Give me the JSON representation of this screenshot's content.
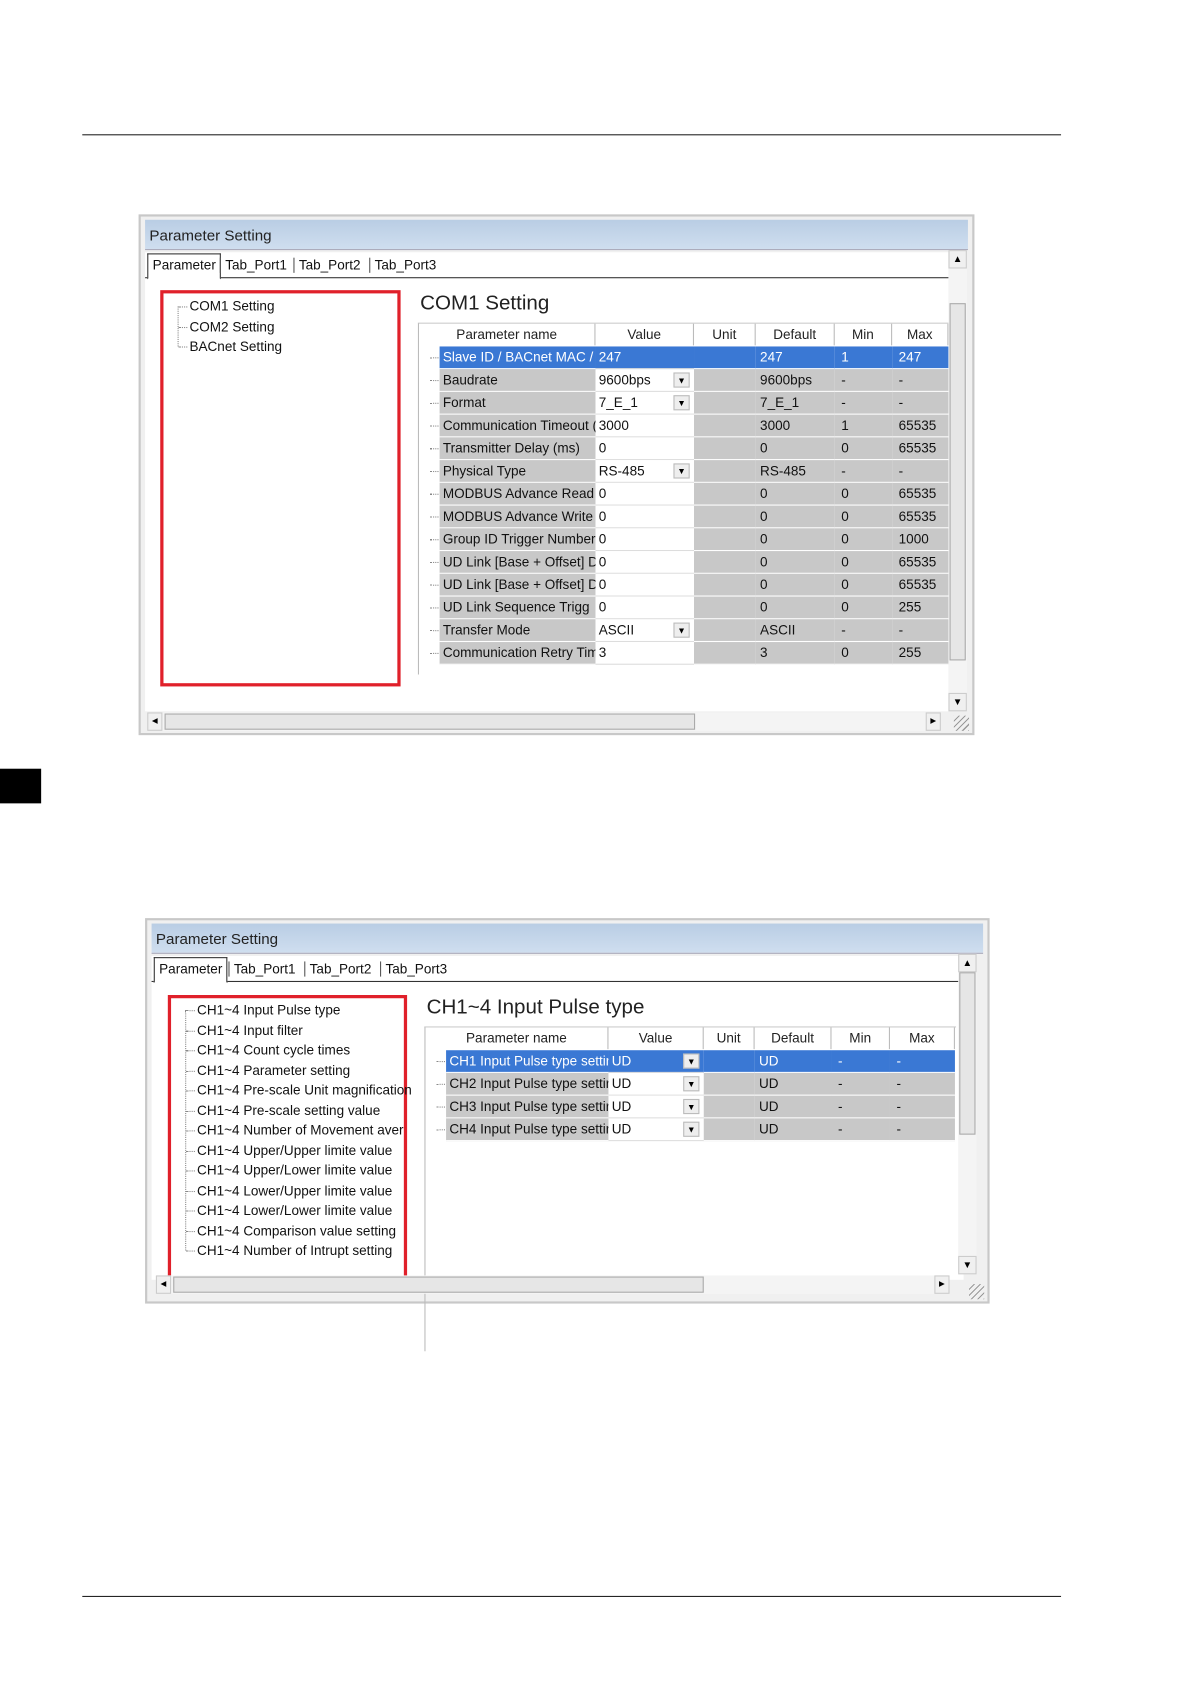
{
  "windows": [
    {
      "title": "Parameter Setting",
      "tabs": [
        "Parameter",
        "Tab_Port1",
        "Tab_Port2",
        "Tab_Port3"
      ],
      "active_tab": "Parameter",
      "tree": [
        "COM1 Setting",
        "COM2 Setting",
        "BACnet Setting"
      ],
      "heading": "COM1 Setting",
      "columns": [
        "Parameter name",
        "Value",
        "Unit",
        "Default",
        "Min",
        "Max"
      ],
      "rows": [
        {
          "name": "Slave ID / BACnet MAC /",
          "value": "247",
          "dropdown": false,
          "unit": "",
          "default": "247",
          "min": "1",
          "max": "247",
          "selected": true
        },
        {
          "name": "Baudrate",
          "value": "9600bps",
          "dropdown": true,
          "unit": "",
          "default": "9600bps",
          "min": "-",
          "max": "-"
        },
        {
          "name": "Format",
          "value": "7_E_1",
          "dropdown": true,
          "unit": "",
          "default": "7_E_1",
          "min": "-",
          "max": "-"
        },
        {
          "name": "Communication Timeout (",
          "value": "3000",
          "dropdown": false,
          "unit": "",
          "default": "3000",
          "min": "1",
          "max": "65535"
        },
        {
          "name": "Transmitter Delay (ms)",
          "value": "0",
          "dropdown": false,
          "unit": "",
          "default": "0",
          "min": "0",
          "max": "65535"
        },
        {
          "name": "Physical Type",
          "value": "RS-485",
          "dropdown": true,
          "unit": "",
          "default": "RS-485",
          "min": "-",
          "max": "-"
        },
        {
          "name": "MODBUS Advance Read",
          "value": "0",
          "dropdown": false,
          "unit": "",
          "default": "0",
          "min": "0",
          "max": "65535"
        },
        {
          "name": "MODBUS Advance Write",
          "value": "0",
          "dropdown": false,
          "unit": "",
          "default": "0",
          "min": "0",
          "max": "65535"
        },
        {
          "name": "Group ID Trigger Number",
          "value": "0",
          "dropdown": false,
          "unit": "",
          "default": "0",
          "min": "0",
          "max": "1000"
        },
        {
          "name": "UD Link [Base + Offset] D",
          "value": "0",
          "dropdown": false,
          "unit": "",
          "default": "0",
          "min": "0",
          "max": "65535"
        },
        {
          "name": "UD Link [Base + Offset] D",
          "value": "0",
          "dropdown": false,
          "unit": "",
          "default": "0",
          "min": "0",
          "max": "65535"
        },
        {
          "name": "UD Link Sequence Trigg",
          "value": "0",
          "dropdown": false,
          "unit": "",
          "default": "0",
          "min": "0",
          "max": "255"
        },
        {
          "name": "Transfer Mode",
          "value": "ASCII",
          "dropdown": true,
          "unit": "",
          "default": "ASCII",
          "min": "-",
          "max": "-"
        },
        {
          "name": "Communication Retry Tim",
          "value": "3",
          "dropdown": false,
          "unit": "",
          "default": "3",
          "min": "0",
          "max": "255"
        }
      ]
    },
    {
      "title": "Parameter Setting",
      "tabs": [
        "Parameter",
        "Tab_Port1",
        "Tab_Port2",
        "Tab_Port3"
      ],
      "active_tab": "Parameter",
      "tree": [
        "CH1~4 Input Pulse type",
        "CH1~4 Input filter",
        "CH1~4 Count cycle times",
        "CH1~4 Parameter setting",
        "CH1~4 Pre-scale Unit magnification",
        "CH1~4 Pre-scale setting value",
        "CH1~4 Number of Movement aver",
        "CH1~4 Upper/Upper limite value",
        "CH1~4 Upper/Lower limite value",
        "CH1~4 Lower/Upper limite value",
        "CH1~4 Lower/Lower limite value",
        "CH1~4 Comparison value setting",
        "CH1~4 Number of Intrupt setting"
      ],
      "heading": "CH1~4 Input Pulse type",
      "columns": [
        "Parameter name",
        "Value",
        "Unit",
        "Default",
        "Min",
        "Max"
      ],
      "rows": [
        {
          "name": "CH1 Input Pulse type settir",
          "value": "UD",
          "dropdown": true,
          "unit": "",
          "default": "UD",
          "min": "-",
          "max": "-",
          "selected": true
        },
        {
          "name": "CH2 Input Pulse type settir",
          "value": "UD",
          "dropdown": true,
          "unit": "",
          "default": "UD",
          "min": "-",
          "max": "-"
        },
        {
          "name": "CH3 Input Pulse type settir",
          "value": "UD",
          "dropdown": true,
          "unit": "",
          "default": "UD",
          "min": "-",
          "max": "-"
        },
        {
          "name": "CH4 Input Pulse type settir",
          "value": "UD",
          "dropdown": true,
          "unit": "",
          "default": "UD",
          "min": "-",
          "max": "-"
        }
      ]
    }
  ],
  "colors": {
    "selection": "#3a78d4",
    "highlight_border": "#e0202a",
    "titlebar": "#c3d6ec",
    "readonly_cell": "#c8c8c8"
  }
}
